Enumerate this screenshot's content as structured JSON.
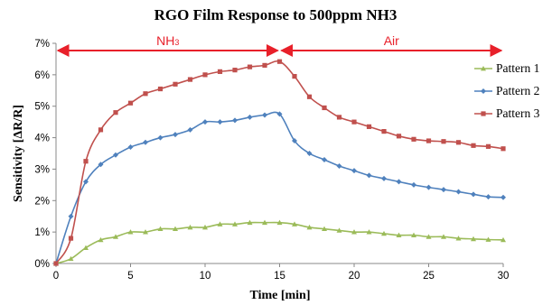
{
  "chart_data": {
    "type": "line",
    "title": "RGO Film Response to 500ppm NH3",
    "xlabel": "Time [min]",
    "ylabel": "Sensitivity [ΔR/R]",
    "xlim": [
      0,
      30
    ],
    "ylim": [
      0,
      7
    ],
    "x_ticks": [
      "0",
      "5",
      "10",
      "15",
      "20",
      "25",
      "30"
    ],
    "y_ticks": [
      "0%",
      "1%",
      "2%",
      "3%",
      "4%",
      "5%",
      "6%",
      "7%"
    ],
    "grid": false,
    "legend": "right",
    "annotations": [
      {
        "label": "NH",
        "sub": "3",
        "x_range": [
          0,
          15
        ]
      },
      {
        "label": "Air",
        "sub": "",
        "x_range": [
          15,
          30
        ]
      }
    ],
    "annotation_color": "#e8202a",
    "x": [
      0,
      1,
      2,
      3,
      4,
      5,
      6,
      7,
      8,
      9,
      10,
      11,
      12,
      13,
      14,
      15,
      16,
      17,
      18,
      19,
      20,
      21,
      22,
      23,
      24,
      25,
      26,
      27,
      28,
      29,
      30
    ],
    "series": [
      {
        "name": "Pattern 1",
        "color": "#9bbb59",
        "marker": "triangle",
        "values": [
          0.0,
          0.15,
          0.5,
          0.75,
          0.85,
          1.0,
          1.0,
          1.1,
          1.1,
          1.15,
          1.15,
          1.25,
          1.25,
          1.3,
          1.3,
          1.3,
          1.25,
          1.15,
          1.1,
          1.05,
          1.0,
          1.0,
          0.95,
          0.9,
          0.9,
          0.85,
          0.85,
          0.8,
          0.78,
          0.76,
          0.75
        ]
      },
      {
        "name": "Pattern 2",
        "color": "#4f81bd",
        "marker": "diamond",
        "values": [
          0.0,
          1.5,
          2.6,
          3.15,
          3.45,
          3.7,
          3.85,
          4.0,
          4.1,
          4.25,
          4.5,
          4.5,
          4.55,
          4.65,
          4.72,
          4.75,
          3.9,
          3.5,
          3.3,
          3.1,
          2.95,
          2.8,
          2.7,
          2.6,
          2.5,
          2.42,
          2.35,
          2.28,
          2.2,
          2.12,
          2.1
        ]
      },
      {
        "name": "Pattern 3",
        "color": "#c0504d",
        "marker": "square",
        "values": [
          0.0,
          0.8,
          3.25,
          4.25,
          4.8,
          5.1,
          5.4,
          5.55,
          5.7,
          5.85,
          6.0,
          6.1,
          6.15,
          6.25,
          6.3,
          6.42,
          5.95,
          5.3,
          4.95,
          4.65,
          4.5,
          4.35,
          4.2,
          4.05,
          3.95,
          3.9,
          3.88,
          3.85,
          3.75,
          3.72,
          3.65
        ]
      }
    ]
  }
}
